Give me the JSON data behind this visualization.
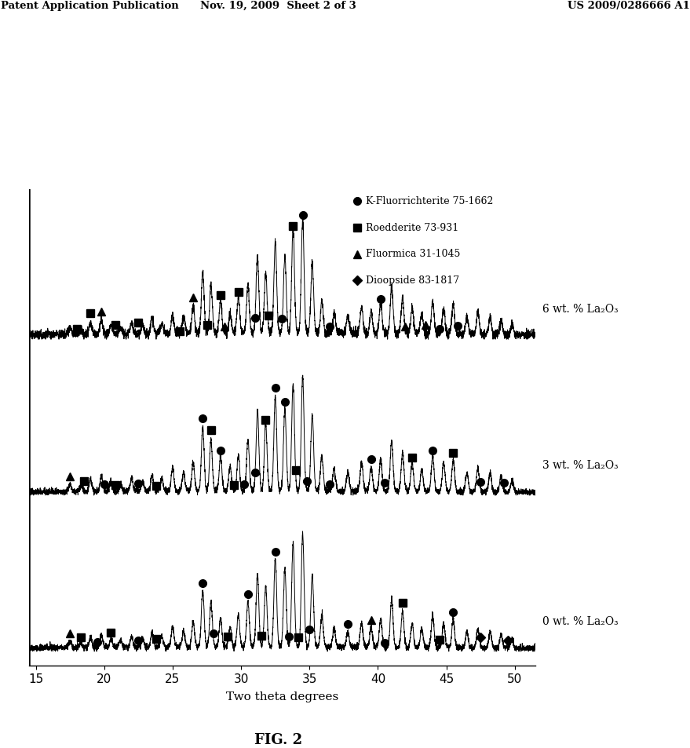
{
  "header_left": "Patent Application Publication",
  "header_mid": "Nov. 19, 2009  Sheet 2 of 3",
  "header_right": "US 2009/0286666 A1",
  "xlabel": "Two theta degrees",
  "xticks": [
    15,
    20,
    25,
    30,
    35,
    40,
    45,
    50
  ],
  "xlim": [
    14.5,
    51.5
  ],
  "fig_caption": "FIG. 2",
  "legend_entries": [
    {
      "marker": "o",
      "label": "K-Fluorrichterite 75-1662"
    },
    {
      "marker": "s",
      "label": "Roedderite 73-931"
    },
    {
      "marker": "^",
      "label": "Fluormica 31-1045"
    },
    {
      "marker": "D",
      "label": "Dioopside 83-1817"
    }
  ],
  "curve_labels": [
    "6 wt. % La₂O₃",
    "3 wt. % La₂O₃",
    "0 wt. % La₂O₃"
  ],
  "background_color": "#ffffff",
  "line_color": "#000000"
}
